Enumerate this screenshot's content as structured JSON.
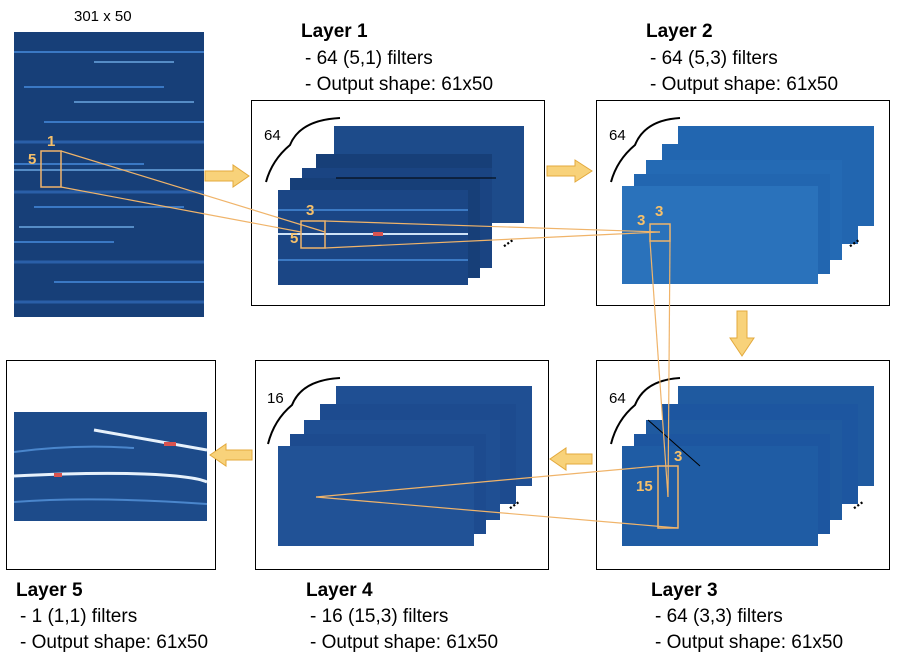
{
  "input": {
    "size_label": "301 x 50"
  },
  "layers": [
    {
      "title": "Layer 1",
      "filters": "- 64 (5,1) filters",
      "output": "- Output shape: 61x50",
      "count_label": "64",
      "kernel_w": "3",
      "kernel_h": "5"
    },
    {
      "title": "Layer 2",
      "filters": "- 64 (5,3) filters",
      "output": "- Output shape: 61x50",
      "count_label": "64",
      "kernel_w": "3",
      "kernel_h": "3"
    },
    {
      "title": "Layer 3",
      "filters": "- 64 (3,3) filters",
      "output": "- Output shape: 61x50",
      "count_label": "64",
      "kernel_w": "3",
      "kernel_h": "15"
    },
    {
      "title": "Layer 4",
      "filters": "- 16 (15,3) filters",
      "output": "- Output shape: 61x50",
      "count_label": "16"
    },
    {
      "title": "Layer 5",
      "filters": "- 1 (1,1) filters",
      "output": "- Output shape: 61x50"
    }
  ],
  "input_kernel": {
    "w": "1",
    "h": "5"
  },
  "ellipsis": "...",
  "colors": {
    "dark_blue": "#173f78",
    "mid_blue": "#2266b0",
    "light_blue": "#2f7bc4",
    "accent_orange": "#f6c06a",
    "arrow_fill": "#f8d27a",
    "line_orange": "#f0b46a"
  }
}
